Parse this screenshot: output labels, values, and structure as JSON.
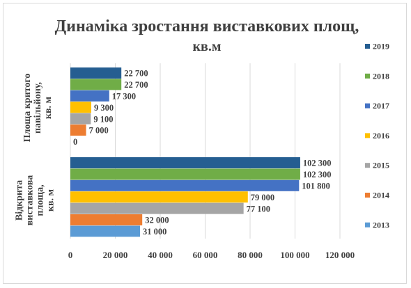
{
  "chart_data": {
    "type": "bar",
    "orientation": "horizontal",
    "title_line1": "Динаміка зростання виставкових площ,",
    "title_line2": "кв.м",
    "categories": [
      "Площа критого павільйону, кв. м",
      "Відкрита виставкова площа, кв. м"
    ],
    "category_label_lines": [
      [
        "Площа критого",
        "павільйону,",
        "кв. м"
      ],
      [
        "Відкрита",
        "виставкова",
        "площа,",
        "кв. м"
      ]
    ],
    "series": [
      {
        "name": "2013",
        "color": "#5b9bd5",
        "values": [
          0,
          31000
        ],
        "labels": [
          "0",
          "31 000"
        ]
      },
      {
        "name": "2014",
        "color": "#ed7d31",
        "values": [
          7000,
          32000
        ],
        "labels": [
          "7 000",
          "32 000"
        ]
      },
      {
        "name": "2015",
        "color": "#a5a5a5",
        "values": [
          9100,
          77100
        ],
        "labels": [
          "9 100",
          "77 100"
        ]
      },
      {
        "name": "2016",
        "color": "#ffc000",
        "values": [
          9300,
          79000
        ],
        "labels": [
          "9 300",
          "79 000"
        ]
      },
      {
        "name": "2017",
        "color": "#4472c4",
        "values": [
          17300,
          101800
        ],
        "labels": [
          "17 300",
          "101 800"
        ]
      },
      {
        "name": "2018",
        "color": "#70ad47",
        "values": [
          22700,
          102300
        ],
        "labels": [
          "22 700",
          "102 300"
        ]
      },
      {
        "name": "2019",
        "color": "#255e91",
        "values": [
          22700,
          102300
        ],
        "labels": [
          "22 700",
          "102 300"
        ]
      }
    ],
    "xlim": [
      0,
      120000
    ],
    "xticks": [
      0,
      20000,
      40000,
      60000,
      80000,
      100000,
      120000
    ],
    "xtick_labels": [
      "0",
      "20 000",
      "40 000",
      "60 000",
      "80 000",
      "100 000",
      "120 000"
    ],
    "grid": true,
    "legend_position": "right",
    "legend_order": [
      "2019",
      "2018",
      "2017",
      "2016",
      "2015",
      "2014",
      "2013"
    ]
  },
  "colors": {
    "title": "#404040",
    "text": "#404040",
    "grid": "#d9d9d9"
  }
}
